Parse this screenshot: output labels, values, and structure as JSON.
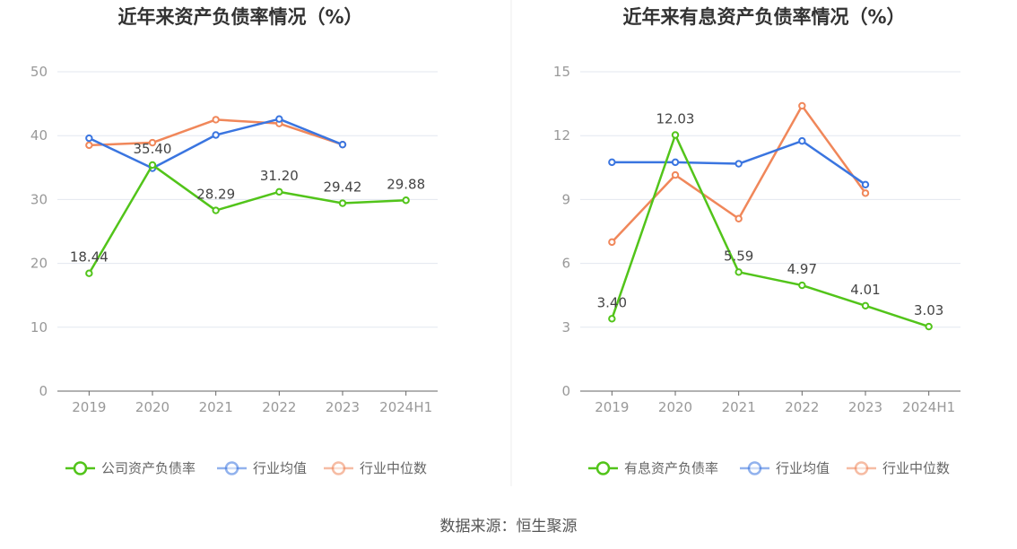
{
  "source_text": "数据来源：恒生聚源",
  "chart_data": [
    {
      "type": "line",
      "title": "近年来资产负债率情况（%）",
      "categories": [
        "2019",
        "2020",
        "2021",
        "2022",
        "2023",
        "2024H1"
      ],
      "ylim": [
        0,
        50
      ],
      "yticks": [
        0,
        10,
        20,
        30,
        40,
        50
      ],
      "grid": true,
      "legend_position": "bottom",
      "series": [
        {
          "name": "公司资产负债率",
          "color": "#52c41a",
          "values": [
            18.44,
            35.4,
            28.29,
            31.2,
            29.42,
            29.88
          ],
          "labels": [
            "18.44",
            "35.40",
            "28.29",
            "31.20",
            "29.42",
            "29.88"
          ]
        },
        {
          "name": "行业均值",
          "color": "#3a75e0",
          "values": [
            39.6,
            34.9,
            40.1,
            42.6,
            38.6,
            null
          ]
        },
        {
          "name": "行业中位数",
          "color": "#f0875a",
          "values": [
            38.5,
            38.9,
            42.5,
            41.9,
            38.6,
            null
          ]
        }
      ]
    },
    {
      "type": "line",
      "title": "近年来有息资产负债率情况（%）",
      "categories": [
        "2019",
        "2020",
        "2021",
        "2022",
        "2023",
        "2024H1"
      ],
      "ylim": [
        0,
        15
      ],
      "yticks": [
        0,
        3,
        6,
        9,
        12,
        15
      ],
      "grid": true,
      "legend_position": "bottom",
      "series": [
        {
          "name": "有息资产负债率",
          "color": "#52c41a",
          "values": [
            3.4,
            12.03,
            5.59,
            4.97,
            4.01,
            3.03
          ],
          "labels": [
            "3.40",
            "12.03",
            "5.59",
            "4.97",
            "4.01",
            "3.03"
          ]
        },
        {
          "name": "行业均值",
          "color": "#3a75e0",
          "values": [
            10.75,
            10.75,
            10.68,
            11.75,
            9.7,
            null
          ]
        },
        {
          "name": "行业中位数",
          "color": "#f0875a",
          "values": [
            7.0,
            10.15,
            8.1,
            13.4,
            9.3,
            null
          ]
        }
      ]
    }
  ]
}
